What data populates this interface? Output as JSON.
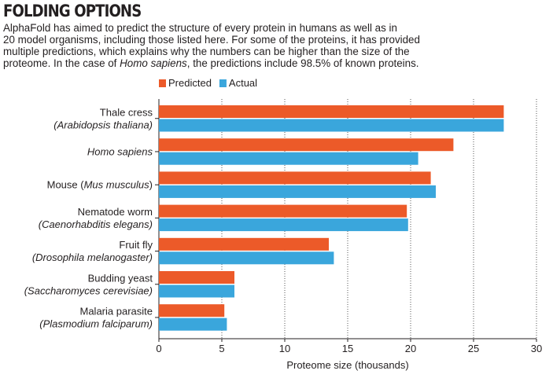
{
  "chart_data": {
    "type": "bar",
    "orientation": "horizontal",
    "title": "FOLDING OPTIONS",
    "subtitle_lines": [
      [
        {
          "text": "AlphaFold has aimed to predict the structure of every protein in humans as well as in"
        }
      ],
      [
        {
          "text": "20 model organisms, including those listed here. For some of the proteins, it has provided"
        }
      ],
      [
        {
          "text": "multiple predictions, which explains why the numbers can be higher than the size of the"
        }
      ],
      [
        {
          "text": "proteome. In the case of "
        },
        {
          "text": "Homo sapiens",
          "italic": true
        },
        {
          "text": ", the predictions include 98.5% of known proteins."
        }
      ]
    ],
    "categories": [
      {
        "line1": [
          {
            "text": "Thale cress"
          }
        ],
        "line2": [
          {
            "text": "(Arabidopsis thaliana)",
            "italic": true
          }
        ]
      },
      {
        "line1": [
          {
            "text": "Homo sapiens",
            "italic": true
          }
        ],
        "line2": []
      },
      {
        "line1": [
          {
            "text": "Mouse ("
          },
          {
            "text": "Mus musculus",
            "italic": true
          },
          {
            "text": ")"
          }
        ],
        "line2": []
      },
      {
        "line1": [
          {
            "text": "Nematode worm"
          }
        ],
        "line2": [
          {
            "text": "(Caenorhabditis elegans)",
            "italic": true
          }
        ]
      },
      {
        "line1": [
          {
            "text": "Fruit fly"
          }
        ],
        "line2": [
          {
            "text": "(Drosophila melanogaster)",
            "italic": true
          }
        ]
      },
      {
        "line1": [
          {
            "text": "Budding yeast"
          }
        ],
        "line2": [
          {
            "text": "(Saccharomyces cerevisiae)",
            "italic": true
          }
        ]
      },
      {
        "line1": [
          {
            "text": "Malaria parasite"
          }
        ],
        "line2": [
          {
            "text": "(Plasmodium falciparum)",
            "italic": true
          }
        ]
      }
    ],
    "series": [
      {
        "name": "Predicted",
        "color": "#ec5a29",
        "values": [
          27.4,
          23.4,
          21.6,
          19.7,
          13.5,
          6.0,
          5.2
        ]
      },
      {
        "name": "Actual",
        "color": "#3aa6dc",
        "values": [
          27.4,
          20.6,
          22.0,
          19.8,
          13.9,
          6.0,
          5.4
        ]
      }
    ],
    "xlabel": "Proteome size (thousands)",
    "xlim": [
      0,
      30
    ],
    "xticks": [
      0,
      5,
      10,
      15,
      20,
      25,
      30
    ],
    "grid": "vertical dotted",
    "legend_position": "top"
  }
}
